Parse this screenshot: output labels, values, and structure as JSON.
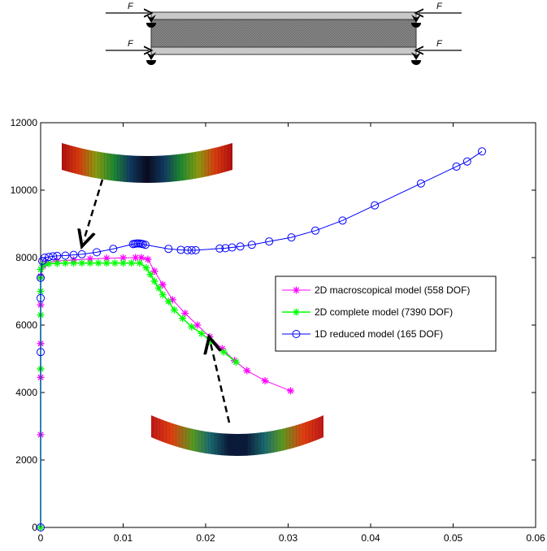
{
  "schematic": {
    "force_label": "F"
  },
  "chart_data": {
    "type": "line",
    "xlim": [
      0,
      0.06
    ],
    "ylim": [
      0,
      12000
    ],
    "xticks": [
      0,
      0.01,
      0.02,
      0.03,
      0.04,
      0.05,
      0.06
    ],
    "xtick_labels": [
      "0",
      "0.01",
      "0.02",
      "0.03",
      "0.04",
      "0.05",
      "0.06"
    ],
    "yticks": [
      0,
      2000,
      4000,
      6000,
      8000,
      10000,
      12000
    ],
    "ytick_labels": [
      "0",
      "2000",
      "4000",
      "6000",
      "8000",
      "10000",
      "12000"
    ],
    "grid": false,
    "legend_position": "center-right",
    "series": [
      {
        "name": "2D macroscopical model (558 DOF)",
        "color": "#ff00ff",
        "marker": "star",
        "x": [
          0,
          0,
          0,
          0,
          0,
          0,
          0.0003,
          0.0008,
          0.002,
          0.004,
          0.006,
          0.008,
          0.01,
          0.0115,
          0.0122,
          0.013,
          0.0138,
          0.0148,
          0.016,
          0.0175,
          0.019,
          0.0205,
          0.022,
          0.0235,
          0.025,
          0.0272,
          0.0303
        ],
        "y": [
          0,
          2750,
          4450,
          5450,
          6600,
          7450,
          7750,
          7850,
          7900,
          7930,
          7960,
          7980,
          7990,
          8000,
          8000,
          7950,
          7600,
          7200,
          6750,
          6350,
          6000,
          5650,
          5300,
          4950,
          4650,
          4350,
          4050
        ]
      },
      {
        "name": "2D complete model (7390 DOF)",
        "color": "#00ff00",
        "marker": "star",
        "x": [
          0,
          0,
          0,
          0,
          0,
          0,
          0.0003,
          0.001,
          0.002,
          0.003,
          0.004,
          0.005,
          0.006,
          0.007,
          0.008,
          0.009,
          0.01,
          0.011,
          0.012,
          0.0128,
          0.0133,
          0.0138,
          0.0143,
          0.0148,
          0.0155,
          0.0162,
          0.0172,
          0.0183,
          0.0195,
          0.0207,
          0.0222,
          0.0237
        ],
        "y": [
          0,
          4700,
          6300,
          7000,
          7400,
          7650,
          7780,
          7820,
          7830,
          7840,
          7840,
          7840,
          7840,
          7840,
          7840,
          7840,
          7840,
          7840,
          7840,
          7700,
          7500,
          7300,
          7100,
          6900,
          6700,
          6450,
          6200,
          5950,
          5750,
          5500,
          5200,
          4900
        ]
      },
      {
        "name": "1D reduced model (165 DOF)",
        "color": "#0000ff",
        "marker": "circle",
        "x": [
          0,
          0,
          0,
          0,
          0.0002,
          0.0005,
          0.001,
          0.0015,
          0.002,
          0.003,
          0.004,
          0.005,
          0.0068,
          0.0088,
          0.0112,
          0.0114,
          0.0116,
          0.0118,
          0.012,
          0.0122,
          0.0124,
          0.0127,
          0.0155,
          0.017,
          0.0178,
          0.0183,
          0.0188,
          0.0217,
          0.0224,
          0.0232,
          0.0242,
          0.0256,
          0.0277,
          0.0304,
          0.0333,
          0.0366,
          0.0405,
          0.0461,
          0.0504,
          0.0517,
          0.0535
        ],
        "y": [
          0,
          5200,
          6800,
          7400,
          7900,
          8000,
          8020,
          8040,
          8050,
          8060,
          8080,
          8100,
          8160,
          8260,
          8400,
          8410,
          8420,
          8420,
          8420,
          8410,
          8400,
          8380,
          8260,
          8230,
          8220,
          8220,
          8220,
          8270,
          8280,
          8300,
          8330,
          8380,
          8480,
          8600,
          8800,
          9100,
          9550,
          10200,
          10700,
          10850,
          11150
        ]
      }
    ]
  }
}
